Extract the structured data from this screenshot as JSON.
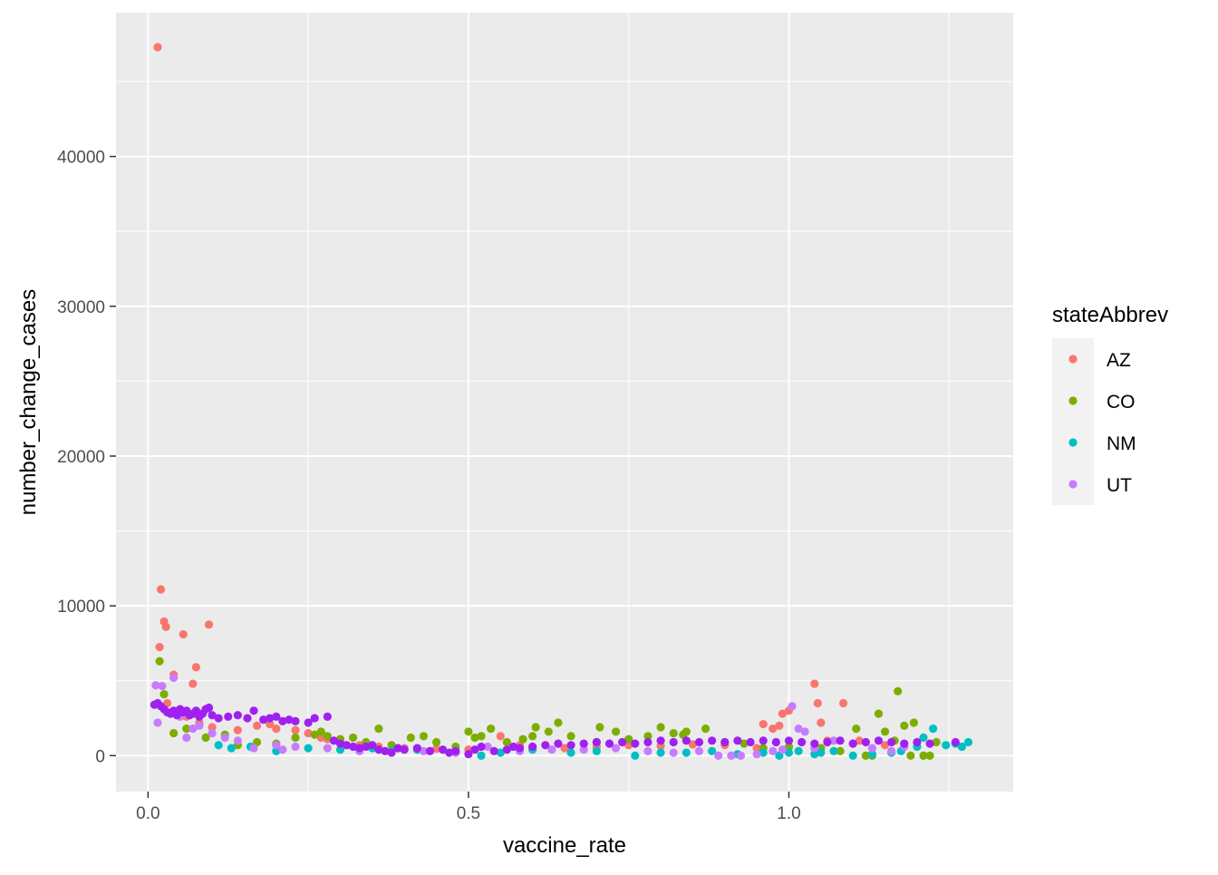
{
  "chart_data": {
    "type": "scatter",
    "title": "",
    "xlabel": "vaccine_rate",
    "ylabel": "number_change_cases",
    "xlim": [
      -0.05,
      1.35
    ],
    "ylim": [
      -2400,
      49600
    ],
    "x_ticks": [
      {
        "value": 0.0,
        "label": "0.0"
      },
      {
        "value": 0.5,
        "label": "0.5"
      },
      {
        "value": 1.0,
        "label": "1.0"
      }
    ],
    "y_ticks": [
      {
        "value": 0,
        "label": "0"
      },
      {
        "value": 10000,
        "label": "10000"
      },
      {
        "value": 20000,
        "label": "20000"
      },
      {
        "value": 30000,
        "label": "30000"
      },
      {
        "value": 40000,
        "label": "40000"
      }
    ],
    "grid": true,
    "background": "#ebebeb",
    "legend": {
      "title": "stateAbbrev",
      "position": "right"
    },
    "series": [
      {
        "name": "AZ",
        "color": "#f8766d",
        "points": [
          [
            0.015,
            47300
          ],
          [
            0.02,
            11100
          ],
          [
            0.025,
            8950
          ],
          [
            0.028,
            8600
          ],
          [
            0.018,
            7250
          ],
          [
            0.055,
            8100
          ],
          [
            0.095,
            8750
          ],
          [
            0.075,
            5900
          ],
          [
            0.04,
            5400
          ],
          [
            0.07,
            4800
          ],
          [
            0.03,
            3500
          ],
          [
            0.06,
            2600
          ],
          [
            0.08,
            2200
          ],
          [
            0.1,
            1900
          ],
          [
            0.14,
            1700
          ],
          [
            0.17,
            2000
          ],
          [
            0.19,
            2100
          ],
          [
            0.2,
            1800
          ],
          [
            0.23,
            1700
          ],
          [
            0.25,
            1500
          ],
          [
            0.27,
            1200
          ],
          [
            0.28,
            1100
          ],
          [
            0.3,
            900
          ],
          [
            0.33,
            700
          ],
          [
            0.36,
            600
          ],
          [
            0.4,
            500
          ],
          [
            0.45,
            450
          ],
          [
            0.5,
            400
          ],
          [
            0.55,
            1300
          ],
          [
            0.58,
            700
          ],
          [
            0.6,
            600
          ],
          [
            0.65,
            500
          ],
          [
            0.7,
            600
          ],
          [
            0.75,
            700
          ],
          [
            0.8,
            650
          ],
          [
            0.85,
            750
          ],
          [
            0.9,
            700
          ],
          [
            0.95,
            500
          ],
          [
            0.96,
            2100
          ],
          [
            0.975,
            1800
          ],
          [
            0.985,
            2000
          ],
          [
            0.99,
            2800
          ],
          [
            1.0,
            3000
          ],
          [
            1.04,
            4800
          ],
          [
            1.045,
            3500
          ],
          [
            1.05,
            2200
          ],
          [
            1.06,
            1000
          ],
          [
            1.085,
            3500
          ],
          [
            1.11,
            1000
          ],
          [
            1.15,
            700
          ]
        ]
      },
      {
        "name": "CO",
        "color": "#7cae00",
        "points": [
          [
            0.018,
            6300
          ],
          [
            0.025,
            4100
          ],
          [
            0.04,
            1500
          ],
          [
            0.06,
            1800
          ],
          [
            0.09,
            1200
          ],
          [
            0.12,
            1400
          ],
          [
            0.14,
            700
          ],
          [
            0.17,
            900
          ],
          [
            0.2,
            800
          ],
          [
            0.23,
            1200
          ],
          [
            0.26,
            1400
          ],
          [
            0.27,
            1600
          ],
          [
            0.28,
            1300
          ],
          [
            0.3,
            1100
          ],
          [
            0.32,
            1200
          ],
          [
            0.34,
            900
          ],
          [
            0.36,
            1800
          ],
          [
            0.38,
            700
          ],
          [
            0.41,
            1200
          ],
          [
            0.43,
            1300
          ],
          [
            0.45,
            900
          ],
          [
            0.48,
            600
          ],
          [
            0.5,
            1600
          ],
          [
            0.51,
            1200
          ],
          [
            0.52,
            1300
          ],
          [
            0.535,
            1800
          ],
          [
            0.56,
            900
          ],
          [
            0.585,
            1100
          ],
          [
            0.6,
            1300
          ],
          [
            0.605,
            1900
          ],
          [
            0.625,
            1600
          ],
          [
            0.64,
            2200
          ],
          [
            0.66,
            1300
          ],
          [
            0.7,
            900
          ],
          [
            0.705,
            1900
          ],
          [
            0.73,
            1600
          ],
          [
            0.75,
            1100
          ],
          [
            0.78,
            1300
          ],
          [
            0.8,
            1900
          ],
          [
            0.82,
            1500
          ],
          [
            0.835,
            1400
          ],
          [
            0.84,
            1600
          ],
          [
            0.87,
            1800
          ],
          [
            0.9,
            900
          ],
          [
            0.93,
            800
          ],
          [
            0.96,
            500
          ],
          [
            1.0,
            600
          ],
          [
            1.05,
            500
          ],
          [
            1.08,
            300
          ],
          [
            1.105,
            1800
          ],
          [
            1.12,
            0
          ],
          [
            1.13,
            0
          ],
          [
            1.14,
            2800
          ],
          [
            1.15,
            1600
          ],
          [
            1.165,
            1000
          ],
          [
            1.17,
            4300
          ],
          [
            1.18,
            2000
          ],
          [
            1.19,
            0
          ],
          [
            1.195,
            2200
          ],
          [
            1.21,
            0
          ],
          [
            1.22,
            0
          ],
          [
            1.23,
            900
          ]
        ]
      },
      {
        "name": "NM",
        "color": "#00bfc4",
        "points": [
          [
            0.11,
            700
          ],
          [
            0.13,
            500
          ],
          [
            0.16,
            600
          ],
          [
            0.2,
            300
          ],
          [
            0.25,
            500
          ],
          [
            0.3,
            400
          ],
          [
            0.35,
            500
          ],
          [
            0.38,
            300
          ],
          [
            0.42,
            400
          ],
          [
            0.48,
            200
          ],
          [
            0.52,
            0
          ],
          [
            0.55,
            200
          ],
          [
            0.6,
            400
          ],
          [
            0.66,
            200
          ],
          [
            0.7,
            300
          ],
          [
            0.76,
            0
          ],
          [
            0.8,
            200
          ],
          [
            0.84,
            200
          ],
          [
            0.88,
            300
          ],
          [
            0.92,
            100
          ],
          [
            0.96,
            200
          ],
          [
            0.985,
            0
          ],
          [
            1.0,
            200
          ],
          [
            1.015,
            300
          ],
          [
            1.04,
            100
          ],
          [
            1.05,
            200
          ],
          [
            1.07,
            300
          ],
          [
            1.1,
            0
          ],
          [
            1.13,
            100
          ],
          [
            1.16,
            200
          ],
          [
            1.175,
            300
          ],
          [
            1.2,
            600
          ],
          [
            1.21,
            1200
          ],
          [
            1.225,
            1800
          ],
          [
            1.245,
            700
          ],
          [
            1.26,
            800
          ],
          [
            1.27,
            600
          ],
          [
            1.28,
            900
          ]
        ]
      },
      {
        "name": "UT",
        "color": "#c77cff",
        "points": [
          [
            0.012,
            4700
          ],
          [
            0.022,
            4650
          ],
          [
            0.015,
            2200
          ],
          [
            0.04,
            5200
          ],
          [
            0.05,
            2600
          ],
          [
            0.06,
            1200
          ],
          [
            0.07,
            1800
          ],
          [
            0.08,
            2000
          ],
          [
            0.1,
            1500
          ],
          [
            0.12,
            1200
          ],
          [
            0.14,
            1000
          ],
          [
            0.165,
            500
          ],
          [
            0.2,
            700
          ],
          [
            0.21,
            400
          ],
          [
            0.23,
            600
          ],
          [
            0.28,
            500
          ],
          [
            0.33,
            300
          ],
          [
            0.38,
            200
          ],
          [
            0.43,
            300
          ],
          [
            0.48,
            200
          ],
          [
            0.53,
            600
          ],
          [
            0.58,
            300
          ],
          [
            0.63,
            400
          ],
          [
            0.68,
            400
          ],
          [
            0.73,
            500
          ],
          [
            0.78,
            300
          ],
          [
            0.82,
            200
          ],
          [
            0.86,
            300
          ],
          [
            0.89,
            0
          ],
          [
            0.91,
            0
          ],
          [
            0.925,
            0
          ],
          [
            0.95,
            100
          ],
          [
            0.975,
            300
          ],
          [
            0.99,
            400
          ],
          [
            1.005,
            3300
          ],
          [
            1.015,
            1800
          ],
          [
            1.025,
            1600
          ],
          [
            1.04,
            500
          ],
          [
            1.07,
            1000
          ],
          [
            1.1,
            800
          ],
          [
            1.13,
            500
          ],
          [
            1.16,
            300
          ],
          [
            1.18,
            600
          ]
        ]
      },
      {
        "name": "UT",
        "color": "#a020f0",
        "points": [
          [
            0.01,
            3400
          ],
          [
            0.015,
            3500
          ],
          [
            0.02,
            3300
          ],
          [
            0.025,
            3100
          ],
          [
            0.03,
            2900
          ],
          [
            0.035,
            2800
          ],
          [
            0.04,
            3000
          ],
          [
            0.045,
            2700
          ],
          [
            0.05,
            3100
          ],
          [
            0.055,
            2900
          ],
          [
            0.06,
            3000
          ],
          [
            0.065,
            2700
          ],
          [
            0.07,
            2800
          ],
          [
            0.075,
            3000
          ],
          [
            0.08,
            2600
          ],
          [
            0.085,
            2800
          ],
          [
            0.09,
            3100
          ],
          [
            0.095,
            3200
          ],
          [
            0.1,
            2700
          ],
          [
            0.11,
            2500
          ],
          [
            0.125,
            2600
          ],
          [
            0.14,
            2700
          ],
          [
            0.155,
            2500
          ],
          [
            0.165,
            3000
          ],
          [
            0.18,
            2400
          ],
          [
            0.19,
            2500
          ],
          [
            0.2,
            2600
          ],
          [
            0.21,
            2300
          ],
          [
            0.22,
            2400
          ],
          [
            0.23,
            2300
          ],
          [
            0.25,
            2200
          ],
          [
            0.26,
            2500
          ],
          [
            0.28,
            2600
          ],
          [
            0.29,
            1000
          ],
          [
            0.3,
            800
          ],
          [
            0.31,
            700
          ],
          [
            0.32,
            600
          ],
          [
            0.33,
            500
          ],
          [
            0.34,
            600
          ],
          [
            0.35,
            700
          ],
          [
            0.36,
            400
          ],
          [
            0.37,
            300
          ],
          [
            0.38,
            200
          ],
          [
            0.39,
            500
          ],
          [
            0.4,
            400
          ],
          [
            0.42,
            500
          ],
          [
            0.44,
            300
          ],
          [
            0.46,
            400
          ],
          [
            0.47,
            200
          ],
          [
            0.48,
            300
          ],
          [
            0.5,
            100
          ],
          [
            0.51,
            400
          ],
          [
            0.52,
            600
          ],
          [
            0.54,
            300
          ],
          [
            0.56,
            400
          ],
          [
            0.57,
            600
          ],
          [
            0.58,
            500
          ],
          [
            0.6,
            600
          ],
          [
            0.62,
            700
          ],
          [
            0.64,
            800
          ],
          [
            0.66,
            700
          ],
          [
            0.68,
            800
          ],
          [
            0.7,
            900
          ],
          [
            0.72,
            800
          ],
          [
            0.74,
            900
          ],
          [
            0.76,
            800
          ],
          [
            0.78,
            900
          ],
          [
            0.8,
            1000
          ],
          [
            0.82,
            900
          ],
          [
            0.84,
            1000
          ],
          [
            0.86,
            900
          ],
          [
            0.88,
            1000
          ],
          [
            0.9,
            900
          ],
          [
            0.92,
            1000
          ],
          [
            0.94,
            900
          ],
          [
            0.96,
            1000
          ],
          [
            0.98,
            900
          ],
          [
            1.0,
            1000
          ],
          [
            1.02,
            900
          ],
          [
            1.04,
            800
          ],
          [
            1.06,
            900
          ],
          [
            1.08,
            1000
          ],
          [
            1.1,
            800
          ],
          [
            1.12,
            900
          ],
          [
            1.14,
            1000
          ],
          [
            1.16,
            900
          ],
          [
            1.18,
            800
          ],
          [
            1.2,
            900
          ],
          [
            1.22,
            800
          ],
          [
            1.26,
            900
          ]
        ]
      }
    ]
  }
}
